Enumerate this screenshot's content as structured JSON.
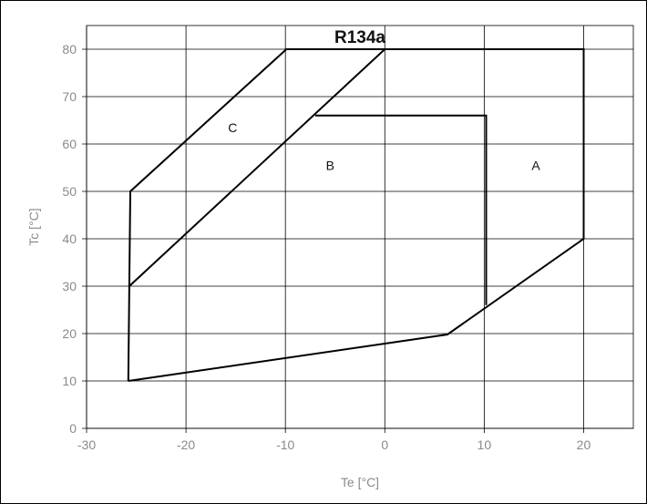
{
  "chart_data": {
    "type": "line",
    "title": "R134a",
    "xlabel": "Te [°C]",
    "ylabel": "Tc [°C]",
    "xlim": [
      -30,
      25
    ],
    "ylim": [
      0,
      85
    ],
    "x_ticks": [
      -30,
      -20,
      -10,
      0,
      10,
      20
    ],
    "y_ticks": [
      0,
      10,
      20,
      30,
      40,
      50,
      60,
      70,
      80
    ],
    "grid": true,
    "series": [
      {
        "name": "A",
        "points": [
          [
            -25.8,
            10
          ],
          [
            6.3,
            19.8
          ],
          [
            20,
            40
          ],
          [
            20,
            80
          ],
          [
            0,
            80
          ],
          [
            -25.7,
            30
          ],
          [
            -25.8,
            10
          ]
        ]
      },
      {
        "name": "B",
        "points": [
          [
            -7,
            66
          ],
          [
            10.2,
            66
          ],
          [
            10.2,
            26
          ]
        ]
      },
      {
        "name": "C",
        "points": [
          [
            -25.7,
            30
          ],
          [
            -25.6,
            50
          ],
          [
            -9.9,
            80
          ],
          [
            0,
            80
          ]
        ]
      }
    ],
    "annotations": [
      {
        "text": "A",
        "x": 15.2,
        "y": 54.5
      },
      {
        "text": "B",
        "x": -5.5,
        "y": 54.5
      },
      {
        "text": "C",
        "x": -15.3,
        "y": 62.5
      }
    ]
  }
}
